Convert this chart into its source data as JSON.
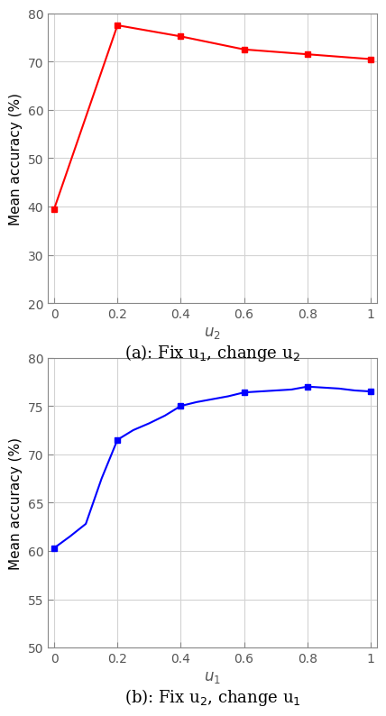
{
  "plot_a": {
    "x": [
      0,
      0.2,
      0.4,
      0.6,
      0.8,
      1.0
    ],
    "y": [
      39.5,
      77.5,
      75.2,
      72.5,
      71.5,
      70.5
    ],
    "color": "#FF0000",
    "marker": "s",
    "markersize": 4,
    "linewidth": 1.5,
    "xlabel_base": "u",
    "xlabel_sub": "2",
    "ylabel": "Mean accuracy (%)",
    "ylim": [
      20,
      80
    ],
    "yticks": [
      20,
      30,
      40,
      50,
      60,
      70,
      80
    ],
    "xlim": [
      -0.02,
      1.02
    ],
    "xticks": [
      0,
      0.2,
      0.4,
      0.6,
      0.8,
      1.0
    ],
    "caption": "(a): Fix u$_{1}$, change u$_{2}$"
  },
  "plot_b": {
    "x_dense": [
      0,
      0.05,
      0.1,
      0.15,
      0.2,
      0.25,
      0.3,
      0.35,
      0.4,
      0.45,
      0.5,
      0.55,
      0.6,
      0.65,
      0.7,
      0.75,
      0.8,
      0.85,
      0.9,
      0.95,
      1.0
    ],
    "y_dense": [
      60.3,
      61.5,
      62.8,
      67.5,
      71.5,
      72.5,
      73.2,
      74.0,
      75.0,
      75.4,
      75.7,
      76.0,
      76.4,
      76.5,
      76.6,
      76.7,
      77.0,
      76.9,
      76.8,
      76.6,
      76.5
    ],
    "x_marks": [
      0,
      0.2,
      0.4,
      0.6,
      0.8,
      1.0
    ],
    "y_marks": [
      60.3,
      71.5,
      75.0,
      76.4,
      77.0,
      76.5
    ],
    "color": "#0000FF",
    "marker": "s",
    "markersize": 4,
    "linewidth": 1.5,
    "xlabel_base": "u",
    "xlabel_sub": "1",
    "ylabel": "Mean accuracy (%)",
    "ylim": [
      50,
      80
    ],
    "yticks": [
      50,
      55,
      60,
      65,
      70,
      75,
      80
    ],
    "xlim": [
      -0.02,
      1.02
    ],
    "xticks": [
      0,
      0.2,
      0.4,
      0.6,
      0.8,
      1.0
    ],
    "caption": "(b): Fix u$_{2}$, change u$_{1}$"
  },
  "background_color": "#ffffff",
  "grid_color": "#d3d3d3",
  "tick_label_color": "#555555",
  "spine_color": "#888888",
  "caption_fontsize": 13,
  "ylabel_fontsize": 11,
  "xlabel_fontsize": 12,
  "tick_fontsize": 10
}
